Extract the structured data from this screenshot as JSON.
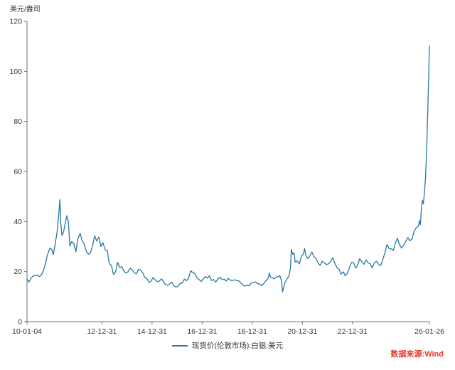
{
  "chart_data": {
    "type": "line",
    "title": "",
    "ylabel": "美元/盎司",
    "xlabel": "",
    "ylim": [
      0,
      120
    ],
    "yticks": [
      0,
      20,
      40,
      60,
      80,
      100,
      120
    ],
    "xlim": [
      2010.01,
      2026.07
    ],
    "xticks": [
      {
        "t": 2010.01,
        "label": "10-01-04"
      },
      {
        "t": 2013.0,
        "label": "12-12-31"
      },
      {
        "t": 2015.0,
        "label": "14-12-31"
      },
      {
        "t": 2017.0,
        "label": "16-12-31"
      },
      {
        "t": 2019.0,
        "label": "18-12-31"
      },
      {
        "t": 2021.0,
        "label": "20-12-31"
      },
      {
        "t": 2023.0,
        "label": "22-12-31"
      },
      {
        "t": 2026.07,
        "label": "26-01-26"
      }
    ],
    "grid": false,
    "legend_position": "bottom-center",
    "legend": [
      {
        "label": "现货价(伦敦市场):白银:美元",
        "color": "#2878a0"
      }
    ],
    "source_label": "数据来源:Wind",
    "source_color": "#e8382d",
    "axis_color": "#6e6e6e",
    "tick_label_color": "#333333",
    "series": [
      {
        "name": "现货价(伦敦市场):白银:美元",
        "color": "#2878a0",
        "points": [
          [
            2010.01,
            17.0
          ],
          [
            2010.08,
            15.8
          ],
          [
            2010.17,
            17.3
          ],
          [
            2010.25,
            18.2
          ],
          [
            2010.33,
            18.4
          ],
          [
            2010.42,
            18.6
          ],
          [
            2010.5,
            18.0
          ],
          [
            2010.58,
            18.5
          ],
          [
            2010.67,
            20.6
          ],
          [
            2010.75,
            23.4
          ],
          [
            2010.83,
            26.8
          ],
          [
            2010.92,
            29.3
          ],
          [
            2011.0,
            28.9
          ],
          [
            2011.06,
            26.8
          ],
          [
            2011.13,
            30.8
          ],
          [
            2011.21,
            35.8
          ],
          [
            2011.27,
            42.0
          ],
          [
            2011.32,
            48.7
          ],
          [
            2011.36,
            39.0
          ],
          [
            2011.4,
            34.5
          ],
          [
            2011.46,
            35.5
          ],
          [
            2011.54,
            39.5
          ],
          [
            2011.6,
            42.3
          ],
          [
            2011.66,
            40.0
          ],
          [
            2011.72,
            30.2
          ],
          [
            2011.79,
            32.0
          ],
          [
            2011.88,
            31.2
          ],
          [
            2011.96,
            27.9
          ],
          [
            2012.04,
            33.0
          ],
          [
            2012.13,
            35.3
          ],
          [
            2012.21,
            32.3
          ],
          [
            2012.29,
            31.0
          ],
          [
            2012.38,
            28.0
          ],
          [
            2012.46,
            26.9
          ],
          [
            2012.54,
            27.4
          ],
          [
            2012.63,
            30.5
          ],
          [
            2012.71,
            34.3
          ],
          [
            2012.79,
            32.2
          ],
          [
            2012.88,
            33.8
          ],
          [
            2012.96,
            30.0
          ],
          [
            2013.04,
            31.5
          ],
          [
            2013.13,
            28.7
          ],
          [
            2013.21,
            28.5
          ],
          [
            2013.29,
            23.4
          ],
          [
            2013.38,
            22.3
          ],
          [
            2013.46,
            18.9
          ],
          [
            2013.54,
            19.8
          ],
          [
            2013.63,
            23.7
          ],
          [
            2013.71,
            21.6
          ],
          [
            2013.79,
            22.0
          ],
          [
            2013.88,
            20.1
          ],
          [
            2013.96,
            19.4
          ],
          [
            2014.04,
            19.9
          ],
          [
            2014.13,
            21.4
          ],
          [
            2014.21,
            20.6
          ],
          [
            2014.29,
            19.5
          ],
          [
            2014.38,
            19.1
          ],
          [
            2014.46,
            20.9
          ],
          [
            2014.54,
            20.7
          ],
          [
            2014.63,
            19.5
          ],
          [
            2014.71,
            17.6
          ],
          [
            2014.79,
            17.2
          ],
          [
            2014.88,
            15.6
          ],
          [
            2014.96,
            16.2
          ],
          [
            2015.04,
            17.6
          ],
          [
            2015.13,
            16.7
          ],
          [
            2015.21,
            16.0
          ],
          [
            2015.29,
            16.2
          ],
          [
            2015.38,
            17.1
          ],
          [
            2015.46,
            15.8
          ],
          [
            2015.54,
            14.8
          ],
          [
            2015.63,
            14.5
          ],
          [
            2015.71,
            15.1
          ],
          [
            2015.79,
            15.8
          ],
          [
            2015.88,
            14.2
          ],
          [
            2015.96,
            13.8
          ],
          [
            2016.04,
            14.2
          ],
          [
            2016.13,
            15.3
          ],
          [
            2016.21,
            15.4
          ],
          [
            2016.29,
            17.0
          ],
          [
            2016.38,
            16.4
          ],
          [
            2016.46,
            17.4
          ],
          [
            2016.54,
            20.3
          ],
          [
            2016.63,
            19.6
          ],
          [
            2016.71,
            19.2
          ],
          [
            2016.79,
            17.6
          ],
          [
            2016.88,
            16.8
          ],
          [
            2016.96,
            16.0
          ],
          [
            2017.04,
            17.0
          ],
          [
            2017.13,
            18.0
          ],
          [
            2017.21,
            17.4
          ],
          [
            2017.29,
            18.3
          ],
          [
            2017.38,
            16.4
          ],
          [
            2017.46,
            16.8
          ],
          [
            2017.54,
            15.8
          ],
          [
            2017.63,
            17.1
          ],
          [
            2017.71,
            17.8
          ],
          [
            2017.79,
            16.8
          ],
          [
            2017.88,
            17.0
          ],
          [
            2017.96,
            16.2
          ],
          [
            2018.04,
            17.3
          ],
          [
            2018.13,
            16.5
          ],
          [
            2018.21,
            16.4
          ],
          [
            2018.29,
            16.7
          ],
          [
            2018.38,
            16.4
          ],
          [
            2018.46,
            16.3
          ],
          [
            2018.54,
            15.5
          ],
          [
            2018.63,
            14.6
          ],
          [
            2018.71,
            14.2
          ],
          [
            2018.79,
            14.6
          ],
          [
            2018.88,
            14.3
          ],
          [
            2018.96,
            15.4
          ],
          [
            2019.04,
            15.6
          ],
          [
            2019.13,
            15.9
          ],
          [
            2019.21,
            15.2
          ],
          [
            2019.29,
            15.0
          ],
          [
            2019.38,
            14.4
          ],
          [
            2019.46,
            15.2
          ],
          [
            2019.54,
            16.3
          ],
          [
            2019.63,
            17.2
          ],
          [
            2019.68,
            19.4
          ],
          [
            2019.73,
            17.9
          ],
          [
            2019.79,
            17.6
          ],
          [
            2019.88,
            17.1
          ],
          [
            2019.96,
            17.9
          ],
          [
            2020.04,
            18.0
          ],
          [
            2020.1,
            18.4
          ],
          [
            2020.16,
            16.6
          ],
          [
            2020.21,
            11.9
          ],
          [
            2020.29,
            15.2
          ],
          [
            2020.38,
            17.0
          ],
          [
            2020.46,
            18.1
          ],
          [
            2020.52,
            21.0
          ],
          [
            2020.56,
            28.9
          ],
          [
            2020.61,
            26.9
          ],
          [
            2020.67,
            27.5
          ],
          [
            2020.71,
            23.8
          ],
          [
            2020.79,
            24.3
          ],
          [
            2020.88,
            23.1
          ],
          [
            2020.96,
            26.2
          ],
          [
            2021.04,
            27.0
          ],
          [
            2021.09,
            29.2
          ],
          [
            2021.13,
            26.7
          ],
          [
            2021.21,
            25.2
          ],
          [
            2021.29,
            26.1
          ],
          [
            2021.38,
            27.8
          ],
          [
            2021.46,
            26.0
          ],
          [
            2021.54,
            25.3
          ],
          [
            2021.63,
            23.5
          ],
          [
            2021.71,
            22.4
          ],
          [
            2021.79,
            24.1
          ],
          [
            2021.88,
            23.4
          ],
          [
            2021.96,
            22.8
          ],
          [
            2022.04,
            23.1
          ],
          [
            2022.13,
            24.0
          ],
          [
            2022.21,
            25.6
          ],
          [
            2022.29,
            23.4
          ],
          [
            2022.38,
            21.5
          ],
          [
            2022.46,
            21.0
          ],
          [
            2022.54,
            19.0
          ],
          [
            2022.63,
            19.9
          ],
          [
            2022.71,
            18.3
          ],
          [
            2022.79,
            19.2
          ],
          [
            2022.88,
            21.6
          ],
          [
            2022.96,
            23.6
          ],
          [
            2023.04,
            23.6
          ],
          [
            2023.13,
            21.4
          ],
          [
            2023.21,
            22.6
          ],
          [
            2023.29,
            25.2
          ],
          [
            2023.38,
            23.8
          ],
          [
            2023.46,
            22.9
          ],
          [
            2023.54,
            24.6
          ],
          [
            2023.63,
            23.4
          ],
          [
            2023.71,
            23.1
          ],
          [
            2023.79,
            21.4
          ],
          [
            2023.88,
            23.6
          ],
          [
            2023.96,
            24.1
          ],
          [
            2024.04,
            22.8
          ],
          [
            2024.13,
            22.4
          ],
          [
            2024.21,
            24.7
          ],
          [
            2024.29,
            27.4
          ],
          [
            2024.38,
            30.8
          ],
          [
            2024.46,
            29.2
          ],
          [
            2024.54,
            29.1
          ],
          [
            2024.63,
            28.5
          ],
          [
            2024.71,
            31.3
          ],
          [
            2024.79,
            33.3
          ],
          [
            2024.88,
            30.7
          ],
          [
            2024.96,
            29.4
          ],
          [
            2025.04,
            30.4
          ],
          [
            2025.13,
            32.2
          ],
          [
            2025.21,
            33.6
          ],
          [
            2025.29,
            32.3
          ],
          [
            2025.38,
            33.1
          ],
          [
            2025.46,
            36.2
          ],
          [
            2025.54,
            37.4
          ],
          [
            2025.63,
            38.2
          ],
          [
            2025.67,
            40.3
          ],
          [
            2025.71,
            38.8
          ],
          [
            2025.75,
            45.2
          ],
          [
            2025.79,
            48.5
          ],
          [
            2025.83,
            47.0
          ],
          [
            2025.88,
            52.5
          ],
          [
            2025.92,
            58.5
          ],
          [
            2025.96,
            69.0
          ],
          [
            2026.0,
            82.0
          ],
          [
            2026.04,
            97.0
          ],
          [
            2026.07,
            110.2
          ]
        ]
      }
    ]
  }
}
